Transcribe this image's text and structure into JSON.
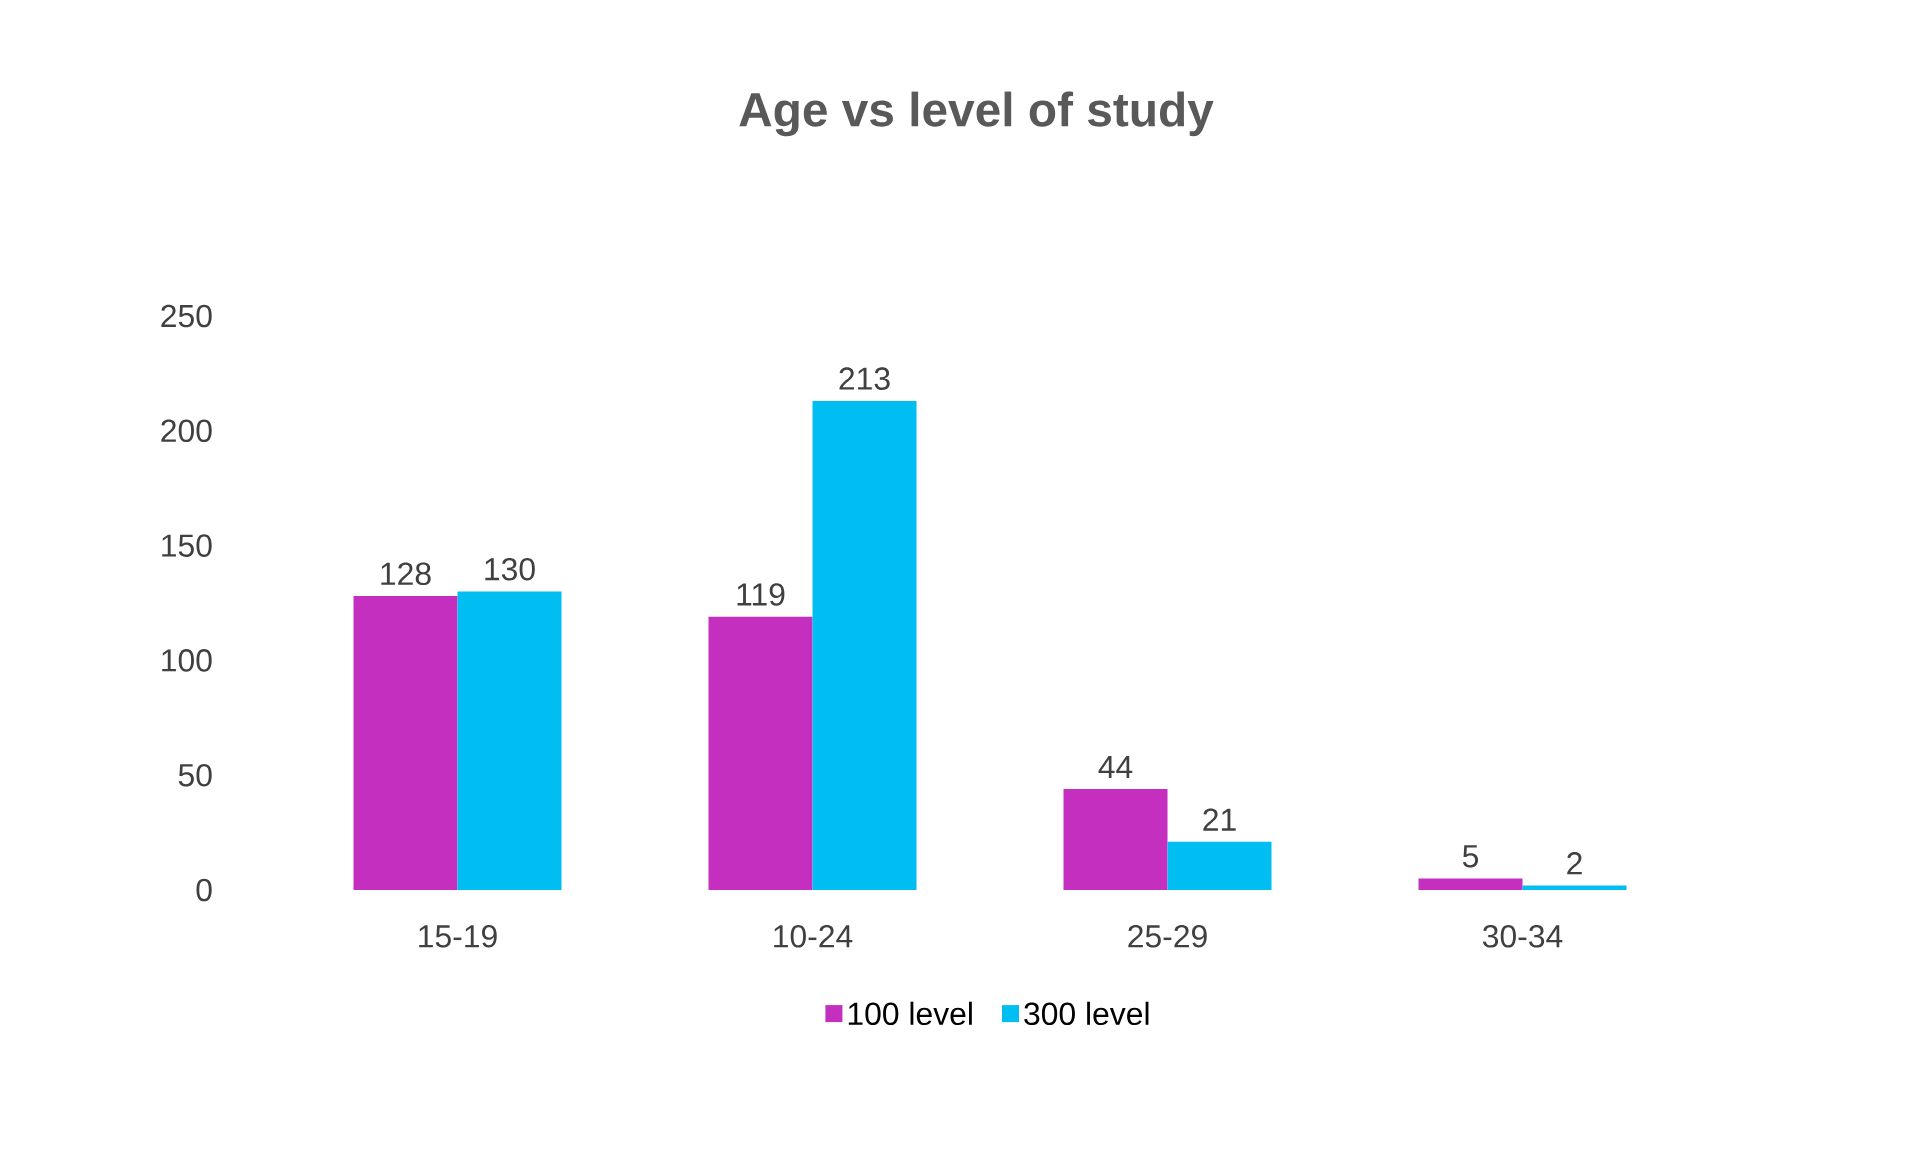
{
  "chart_data": {
    "type": "bar",
    "title": "Age vs level of study",
    "categories": [
      "15-19",
      "10-24",
      "25-29",
      "30-34"
    ],
    "series": [
      {
        "name": "100 level",
        "color": "#c42fc0",
        "values": [
          128,
          119,
          44,
          5
        ]
      },
      {
        "name": "300 level",
        "color": "#00bdf2",
        "values": [
          130,
          213,
          21,
          2
        ]
      }
    ],
    "ylim": [
      0,
      250
    ],
    "yticks": [
      0,
      50,
      100,
      150,
      200,
      250
    ],
    "data_labels": true,
    "legend": "bottom"
  }
}
